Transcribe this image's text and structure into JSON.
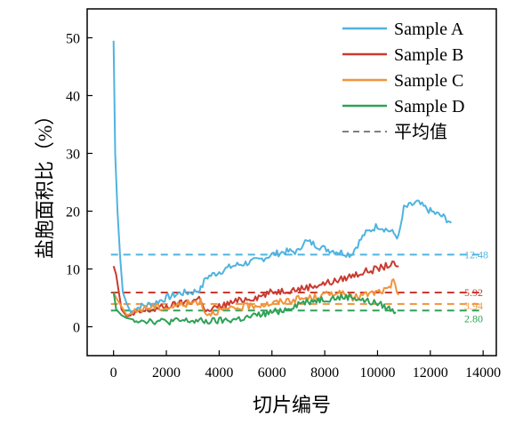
{
  "chart_data": {
    "type": "line",
    "xlabel": "切片编号",
    "ylabel": "盐胞面积比（%）",
    "xlim": [
      -1000,
      14500
    ],
    "ylim": [
      -5,
      55
    ],
    "xticks": [
      0,
      2000,
      4000,
      6000,
      8000,
      10000,
      12000,
      14000
    ],
    "yticks": [
      0,
      10,
      20,
      30,
      40,
      50
    ],
    "legend_position": "top-right",
    "grid": false,
    "series": [
      {
        "name": "Sample A",
        "color": "#4fb3e0",
        "x": [
          0,
          60,
          150,
          250,
          350,
          500,
          650,
          800,
          1000,
          1500,
          2000,
          2500,
          3000,
          3200,
          3300,
          3500,
          4000,
          4500,
          5000,
          5500,
          6000,
          6500,
          7000,
          7200,
          7500,
          8000,
          8500,
          9000,
          9500,
          10000,
          10500,
          10800,
          11000,
          11500,
          12000,
          12500,
          12800
        ],
        "values": [
          49.5,
          30,
          20,
          12,
          6,
          4,
          2.5,
          3,
          3.5,
          4,
          5,
          5.8,
          6,
          6.3,
          6.5,
          8.5,
          9.5,
          10.5,
          11,
          11.5,
          12.5,
          13,
          13,
          14.8,
          14.5,
          13.5,
          13,
          12.5,
          16,
          17.5,
          16.5,
          15.5,
          20.5,
          21.5,
          20,
          19,
          18
        ]
      },
      {
        "name": "Sample B",
        "color": "#c93a31",
        "x": [
          0,
          100,
          200,
          300,
          500,
          700,
          1000,
          1500,
          2000,
          2500,
          3000,
          3300,
          3500,
          4000,
          4500,
          5000,
          5500,
          6000,
          6500,
          7000,
          7500,
          8000,
          8500,
          9000,
          9500,
          10000,
          10500,
          10800
        ],
        "values": [
          10.5,
          9,
          6,
          3,
          1.8,
          2,
          2.5,
          3,
          3.5,
          4,
          4.5,
          5,
          2.5,
          3.5,
          4.2,
          4.8,
          5.2,
          6,
          6.3,
          6.5,
          7,
          7.5,
          8,
          8.8,
          9.5,
          10,
          10.8,
          10.5
        ]
      },
      {
        "name": "Sample C",
        "color": "#f0943c",
        "x": [
          0,
          100,
          300,
          500,
          800,
          1000,
          1500,
          2000,
          2500,
          3000,
          3300,
          3500,
          4000,
          4500,
          5000,
          5500,
          6000,
          6500,
          7000,
          7500,
          8000,
          8500,
          9000,
          9500,
          10000,
          10500,
          10600,
          10800
        ],
        "values": [
          6,
          5,
          3.5,
          2,
          2.5,
          3,
          3.5,
          3.2,
          3.8,
          4.2,
          4.5,
          2.2,
          2.8,
          3,
          3.5,
          3.8,
          4,
          4.5,
          4.8,
          5,
          5.5,
          6,
          5,
          5.5,
          6,
          6.5,
          8.5,
          5.5
        ]
      },
      {
        "name": "Sample D",
        "color": "#2fa158",
        "x": [
          0,
          100,
          300,
          500,
          800,
          1000,
          1500,
          2000,
          2500,
          3000,
          3500,
          4000,
          4500,
          5000,
          5500,
          6000,
          6500,
          7000,
          7500,
          8000,
          8500,
          9000,
          9500,
          10000,
          10500,
          10700
        ],
        "values": [
          6,
          3,
          2,
          1.5,
          1.2,
          1.2,
          1.0,
          0.9,
          1.0,
          1.0,
          0.9,
          1.0,
          1.2,
          1.5,
          2,
          2.5,
          3,
          4,
          4.5,
          4.8,
          5,
          5.2,
          4.5,
          4,
          3,
          2.5
        ]
      }
    ],
    "mean_lines": [
      {
        "value": 12.48,
        "label": "12.48",
        "color": "#4fb3e0"
      },
      {
        "value": 5.92,
        "label": "5.92",
        "color": "#c93a31"
      },
      {
        "value": 3.94,
        "label": "3.94",
        "color": "#f0943c"
      },
      {
        "value": 2.8,
        "label": "2.80",
        "color": "#2fa158"
      }
    ],
    "legend": {
      "entries": [
        "Sample A",
        "Sample B",
        "Sample C",
        "Sample D"
      ],
      "mean_entry": "平均值"
    }
  }
}
